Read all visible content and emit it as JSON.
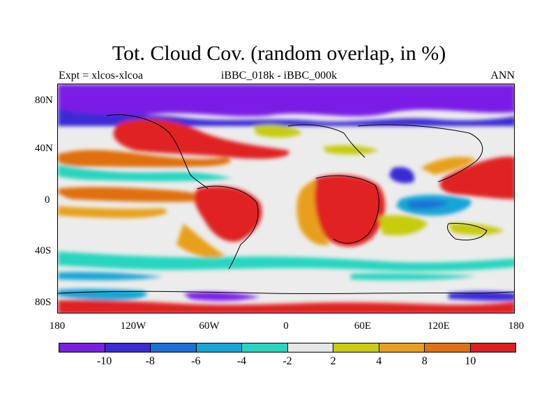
{
  "title": "Tot. Cloud Cov. (random overlap, in %)",
  "subtitle_left": "Expt = xlcos-xlcoa",
  "subtitle_center": "iBBC_018k - iBBC_000k",
  "subtitle_right": "ANN",
  "lat_labels": [
    "80N",
    "40N",
    "0",
    "40S",
    "80S"
  ],
  "lon_labels": [
    "180",
    "120W",
    "60W",
    "0",
    "60E",
    "120E",
    "180"
  ],
  "colorbar": {
    "colors": [
      "#7a1ee6",
      "#3a2bd6",
      "#1c6fd8",
      "#14a6d6",
      "#27d6c0",
      "#e6e6e6",
      "#c8cc10",
      "#e8a01a",
      "#e07010",
      "#e02020"
    ],
    "labels": [
      "-10",
      "-8",
      "-6",
      "-4",
      "-2",
      "2",
      "4",
      "8",
      "10"
    ]
  },
  "icons": {
    "map": "world-map-icon"
  }
}
